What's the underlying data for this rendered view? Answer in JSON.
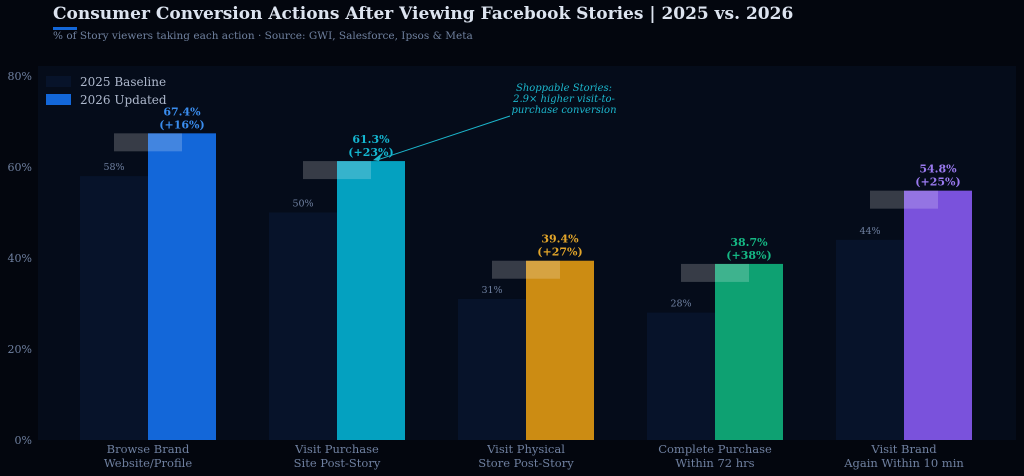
{
  "chart_data": {
    "type": "bar",
    "title": "Consumer Conversion Actions After Viewing Facebook Stories  |  2025 vs. 2026",
    "subtitle": "% of Story viewers taking each action  ·  Source: GWI, Salesforce, Ipsos & Meta",
    "categories": [
      [
        "Browse Brand",
        "Website/Profile"
      ],
      [
        "Visit Purchase",
        "Site Post-Story"
      ],
      [
        "Visit Physical",
        "Store Post-Story"
      ],
      [
        "Complete Purchase",
        "Within 72 hrs"
      ],
      [
        "Visit Brand",
        "Again Within 10 min"
      ]
    ],
    "series": [
      {
        "name": "2025 Baseline",
        "values": [
          58,
          50,
          31,
          28,
          44
        ],
        "labels": [
          "58%",
          "50%",
          "31%",
          "28%",
          "44%"
        ]
      },
      {
        "name": "2026 Updated",
        "values": [
          67.4,
          61.3,
          39.4,
          38.7,
          54.8
        ],
        "labels": [
          "67.4%",
          "61.3%",
          "39.4%",
          "38.7%",
          "54.8%"
        ],
        "changes": [
          "(+16%)",
          "(+23%)",
          "(+27%)",
          "(+38%)",
          "(+25%)"
        ]
      }
    ],
    "ylim": [
      0,
      80
    ],
    "yticks": [
      0,
      20,
      40,
      60,
      80
    ],
    "ytick_labels": [
      "0%",
      "20%",
      "40%",
      "60%",
      "80%"
    ],
    "legend_position": "top-left",
    "grid": false,
    "annotation": {
      "lines": [
        "Shoppable Stories:",
        "2.9× higher visit-to-",
        "purchase conversion"
      ],
      "target_category": 1
    },
    "colors": {
      "background": "#03060e",
      "plot_background": "#050c1a",
      "baseline_bar": "#07132a",
      "updated": [
        "#1367d9",
        "#04a1c0",
        "#cc8c13",
        "#0ea172",
        "#7a52dc"
      ],
      "label_colors": [
        "#3a8dee",
        "#14b6d0",
        "#e2a52a",
        "#15b884",
        "#9a7af0"
      ],
      "title": "#dde4f0",
      "subtitle": "#6f809e",
      "axis_text": "#6f80a0",
      "annotation": "#1cb6cc"
    }
  }
}
